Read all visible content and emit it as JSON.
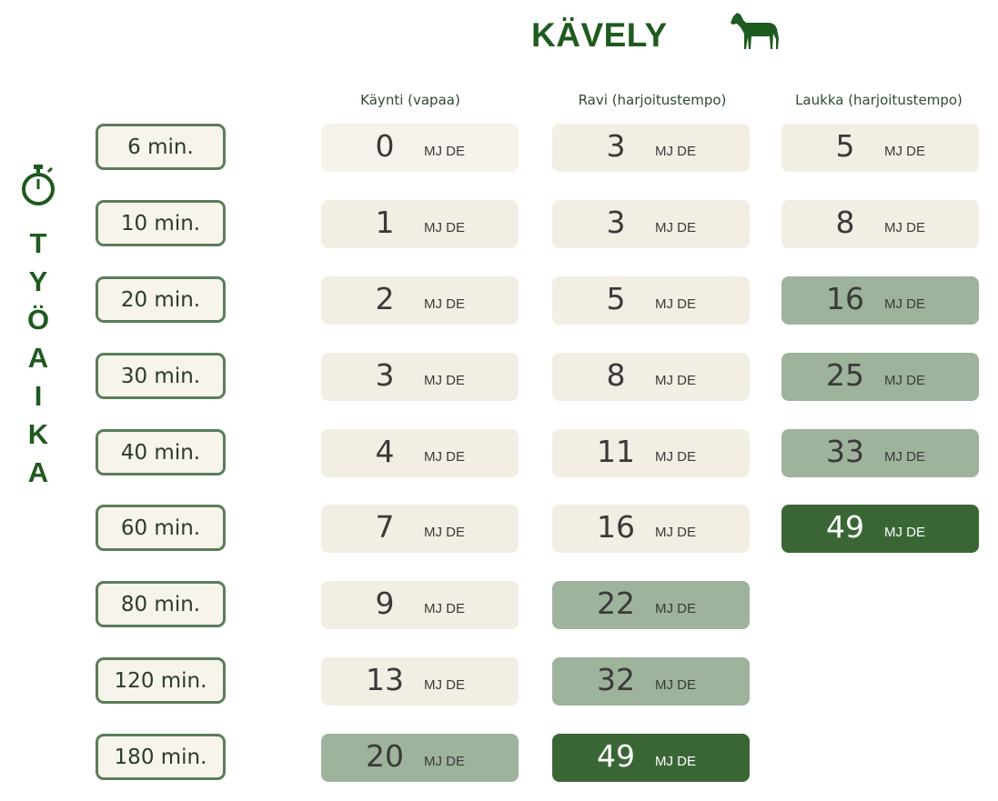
{
  "title": "KÄVELY",
  "vertical_label": [
    "T",
    "Y",
    "Ö",
    "A",
    "I",
    "K",
    "A"
  ],
  "columns": [
    "Käynti (vapaa)",
    "Ravi (harjoitustempo)",
    "Laukka (harjoitustempo)"
  ],
  "unit": "MJ DE",
  "times": [
    "6 min.",
    "10 min.",
    "20 min.",
    "30 min.",
    "40 min.",
    "60 min.",
    "80 min.",
    "120 min.",
    "180 min."
  ],
  "kaynti": [
    "0",
    "1",
    "2",
    "3",
    "4",
    "7",
    "9",
    "13",
    "20"
  ],
  "ravi": [
    "3",
    "3",
    "5",
    "8",
    "11",
    "16",
    "22",
    "32",
    "49"
  ],
  "laukka": [
    "5",
    "8",
    "16",
    "25",
    "33",
    "49"
  ],
  "colors": {
    "brand_green": "#1f5a1f",
    "cell_light": "#f3eee4",
    "cell_mid": "#9db39b",
    "cell_dark": "#3a6636"
  }
}
